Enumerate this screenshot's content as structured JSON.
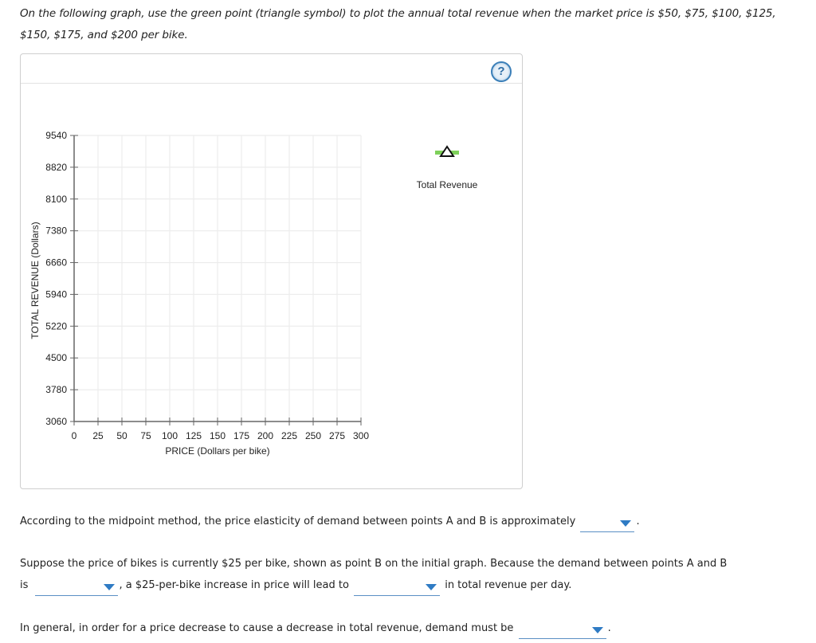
{
  "instructions": "On the following graph, use the green point (triangle symbol) to plot the annual total revenue when the market price is $50, $75, $100, $125, $150, $175, and $200 per bike.",
  "help_icon": {
    "glyph": "?",
    "name": "help-icon"
  },
  "legend": {
    "label": "Total Revenue",
    "marker": "triangle",
    "marker_color": "#7ed05a"
  },
  "chart_data": {
    "type": "scatter",
    "title": "",
    "xlabel": "PRICE (Dollars per bike)",
    "ylabel": "TOTAL REVENUE (Dollars)",
    "xlim": [
      0,
      300
    ],
    "ylim": [
      3060,
      9540
    ],
    "x_ticks": [
      0,
      25,
      50,
      75,
      100,
      125,
      150,
      175,
      200,
      225,
      250,
      275,
      300
    ],
    "y_ticks": [
      3060,
      3780,
      4500,
      5220,
      5940,
      6660,
      7380,
      8100,
      8820,
      9540
    ],
    "grid": true,
    "legend_position": "right",
    "series": [
      {
        "name": "Total Revenue",
        "marker": "triangle",
        "color": "#7ed05a",
        "points": []
      }
    ]
  },
  "questions": {
    "q1": {
      "before": "According to the midpoint method, the price elasticity of demand between points A and B is approximately",
      "after": ".",
      "dropdown_value": ""
    },
    "q2": {
      "line1": "Suppose the price of bikes is currently $25 per bike, shown as point B on the initial graph. Because the demand between points A and B",
      "is_label": "is",
      "middle": ", a $25-per-bike increase in price will lead to",
      "after": "in total revenue per day.",
      "dropdown1_value": "",
      "dropdown2_value": ""
    },
    "q3": {
      "before": "In general, in order for a price decrease to cause a decrease in total revenue, demand must be",
      "after": ".",
      "dropdown_value": ""
    }
  }
}
